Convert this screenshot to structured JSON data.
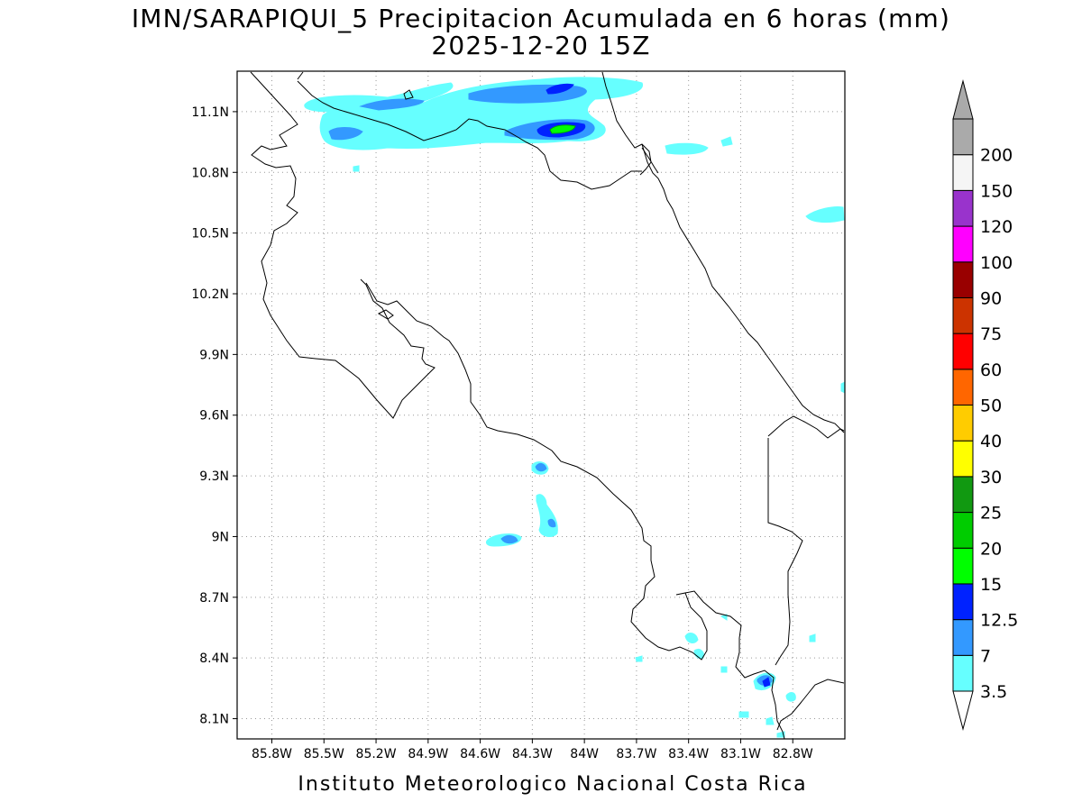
{
  "chart_data": {
    "type": "heatmap",
    "title": "IMN/SARAPIQUI_5 Precipitacion Acumulada en 6 horas (mm)",
    "subtitle": "2025-12-20 15Z",
    "footer": "Instituto Meteorologico Nacional Costa Rica",
    "x_ticks": [
      "85.8W",
      "85.5W",
      "85.2W",
      "84.9W",
      "84.6W",
      "84.3W",
      "84W",
      "83.7W",
      "83.4W",
      "83.1W",
      "82.8W"
    ],
    "y_ticks": [
      "11.1N",
      "10.8N",
      "10.5N",
      "10.2N",
      "9.9N",
      "9.6N",
      "9.3N",
      "9N",
      "8.7N",
      "8.4N",
      "8.1N"
    ],
    "xlim": [
      -86.0,
      -82.5
    ],
    "ylim": [
      8.0,
      11.3
    ],
    "grid": true,
    "colorbar": {
      "labels": [
        "3.5",
        "7",
        "12.5",
        "15",
        "20",
        "25",
        "30",
        "40",
        "50",
        "60",
        "75",
        "90",
        "100",
        "120",
        "150",
        "200"
      ],
      "colors": [
        "#66ffff",
        "#3399ff",
        "#0022ff",
        "#00ff00",
        "#00cc00",
        "#119911",
        "#ffff00",
        "#ffcc00",
        "#ff6600",
        "#ff0000",
        "#cc3300",
        "#990000",
        "#ff00ff",
        "#9933cc",
        "#f5f5f5",
        "#aaaaaa"
      ]
    }
  }
}
